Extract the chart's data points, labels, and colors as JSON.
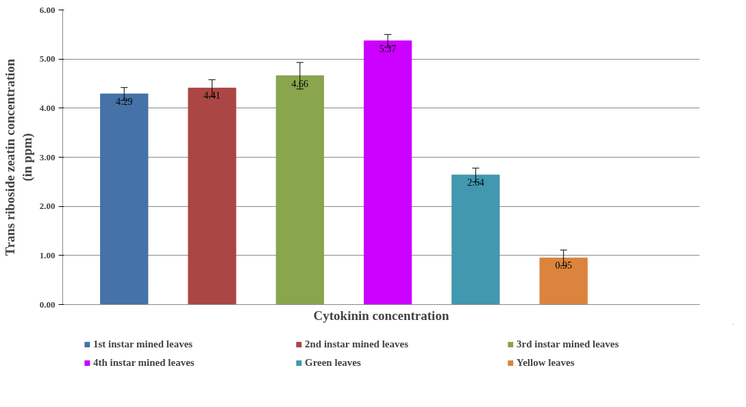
{
  "chart_data": {
    "type": "bar",
    "xlabel": "Cytokinin concentration",
    "ylabel": "Trans riboside zeatin concentration\n(in ppm)",
    "categories": [
      null
    ],
    "series": [
      {
        "name": "1st instar mined leaves",
        "color": "#4572a7",
        "values": [
          4.29
        ],
        "errors": [
          0.13
        ]
      },
      {
        "name": "2nd instar mined leaves",
        "color": "#aa4643",
        "values": [
          4.41
        ],
        "errors": [
          0.17
        ]
      },
      {
        "name": "3rd instar mined leaves",
        "color": "#89a54e",
        "values": [
          4.66
        ],
        "errors": [
          0.27
        ]
      },
      {
        "name": "4th instar mined leaves",
        "color": "#cc00ff",
        "values": [
          5.37
        ],
        "errors": [
          0.13
        ]
      },
      {
        "name": "Green leaves",
        "color": "#4198af",
        "values": [
          2.64
        ],
        "errors": [
          0.14
        ]
      },
      {
        "name": "Yellow leaves",
        "color": "#db843d",
        "values": [
          0.95
        ],
        "errors": [
          0.16
        ]
      }
    ],
    "ylim": [
      0,
      6
    ],
    "yticks": [
      {
        "value": 0,
        "label": "0.00"
      },
      {
        "value": 1,
        "label": "1.00"
      },
      {
        "value": 2,
        "label": "2.00"
      },
      {
        "value": 3,
        "label": "3.00"
      },
      {
        "value": 4,
        "label": "4.00"
      },
      {
        "value": 5,
        "label": "5.00"
      },
      {
        "value": 6,
        "label": "6.00"
      }
    ],
    "grid": "y",
    "legend": "bottom",
    "data_labels": true
  }
}
